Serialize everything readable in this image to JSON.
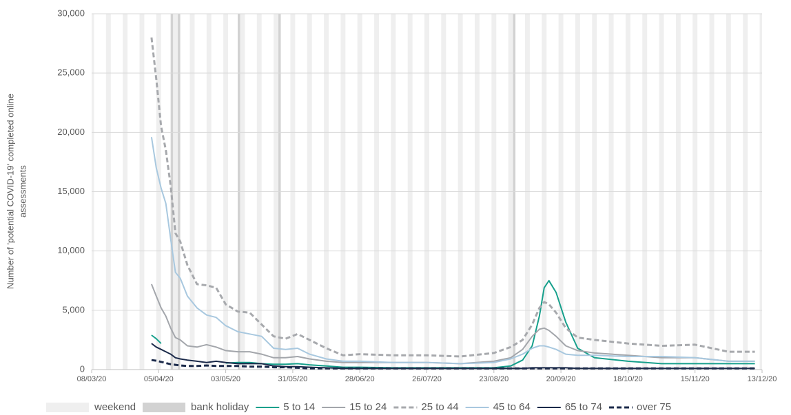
{
  "chart_data": {
    "type": "line",
    "y_label_lines": [
      "Number of 'potential COVID-19' completed online",
      "assessments"
    ],
    "xlim": [
      "08/03/20",
      "13/12/20"
    ],
    "xticks": [
      "08/03/20",
      "05/04/20",
      "03/05/20",
      "31/05/20",
      "28/06/20",
      "26/07/20",
      "23/08/20",
      "20/09/20",
      "18/10/20",
      "15/11/20",
      "13/12/20"
    ],
    "ylim": [
      0,
      30000
    ],
    "yticks": [
      0,
      {
        "value": 5000,
        "label": "5,000"
      },
      {
        "value": 10000,
        "label": "10,000"
      },
      {
        "value": 15000,
        "label": "15,000"
      },
      {
        "value": 20000,
        "label": "20,000"
      },
      {
        "value": 25000,
        "label": "25,000"
      },
      {
        "value": 30000,
        "label": "30,000"
      }
    ],
    "grid": true,
    "weekend_label": "weekend",
    "weekend_color": "#efefef",
    "bank_holiday_label": "bank holiday",
    "bank_holiday_color": "#d2d2d2",
    "bank_holidays": [
      "10/04/20",
      "13/04/20",
      "08/05/20",
      "25/05/20",
      "31/08/20"
    ],
    "legend": "bottom",
    "x": [
      "02/04/20",
      "04/04/20",
      "06/04/20",
      "08/04/20",
      "10/04/20",
      "12/04/20",
      "14/04/20",
      "17/04/20",
      "21/04/20",
      "25/04/20",
      "29/04/20",
      "03/05/20",
      "08/05/20",
      "13/05/20",
      "18/05/20",
      "23/05/20",
      "28/05/20",
      "02/06/20",
      "07/06/20",
      "14/06/20",
      "21/06/20",
      "28/06/20",
      "12/07/20",
      "26/07/20",
      "09/08/20",
      "23/08/20",
      "30/08/20",
      "04/09/20",
      "08/09/20",
      "11/09/20",
      "13/09/20",
      "15/09/20",
      "18/09/20",
      "22/09/20",
      "27/09/20",
      "04/10/20",
      "18/10/20",
      "01/11/20",
      "15/11/20",
      "29/11/20",
      "10/12/20"
    ],
    "series": [
      {
        "name": "5 to 14",
        "color": "#17a08c",
        "dashed": false,
        "values": [
          2900,
          2600,
          2200,
          null,
          null,
          null,
          null,
          null,
          null,
          null,
          null,
          550,
          600,
          600,
          500,
          450,
          450,
          500,
          400,
          300,
          200,
          200,
          150,
          150,
          150,
          150,
          300,
          800,
          2000,
          4500,
          6900,
          7500,
          6500,
          4000,
          1800,
          1000,
          700,
          500,
          500,
          500,
          500
        ]
      },
      {
        "name": "15 to 24",
        "color": "#a3a6ab",
        "dashed": false,
        "values": [
          7200,
          6200,
          5200,
          4500,
          3500,
          2700,
          2500,
          2000,
          1900,
          2100,
          1900,
          1600,
          1500,
          1500,
          1300,
          1000,
          1000,
          1100,
          900,
          700,
          600,
          600,
          600,
          600,
          500,
          700,
          1000,
          1700,
          2800,
          3400,
          3500,
          3300,
          2800,
          2000,
          1600,
          1400,
          1200,
          1000,
          1000,
          700,
          700
        ]
      },
      {
        "name": "25 to 44",
        "color": "#a7a9ad",
        "dashed": true,
        "values": [
          28000,
          24500,
          20500,
          18500,
          15500,
          11500,
          10800,
          8800,
          7200,
          7100,
          6900,
          5500,
          4900,
          4800,
          3800,
          2800,
          2600,
          3000,
          2500,
          1800,
          1200,
          1300,
          1200,
          1200,
          1100,
          1400,
          1900,
          2500,
          3800,
          5200,
          5700,
          5500,
          4800,
          3500,
          2700,
          2500,
          2200,
          2000,
          2100,
          1500,
          1500
        ]
      },
      {
        "name": "45 to 64",
        "color": "#a8c8df",
        "dashed": false,
        "values": [
          19600,
          17000,
          15300,
          14000,
          11000,
          8200,
          7700,
          6200,
          5200,
          4600,
          4400,
          3700,
          3200,
          3000,
          2800,
          1800,
          1700,
          1800,
          1300,
          900,
          700,
          700,
          600,
          600,
          500,
          600,
          900,
          1300,
          1800,
          2000,
          2000,
          1900,
          1700,
          1300,
          1200,
          1200,
          1100,
          1100,
          1000,
          700,
          700
        ]
      },
      {
        "name": "65 to 74",
        "color": "#1b2a4a",
        "dashed": false,
        "values": [
          2200,
          1900,
          1700,
          1500,
          1300,
          1000,
          900,
          800,
          700,
          600,
          700,
          600,
          500,
          500,
          500,
          300,
          250,
          250,
          200,
          150,
          100,
          100,
          100,
          100,
          100,
          100,
          100,
          100,
          150,
          150,
          150,
          150,
          150,
          150,
          100,
          100,
          100,
          100,
          100,
          100,
          100
        ]
      },
      {
        "name": "over 75",
        "color": "#1b2a4a",
        "dashed": true,
        "values": [
          800,
          750,
          650,
          550,
          450,
          400,
          350,
          300,
          300,
          350,
          300,
          300,
          300,
          250,
          250,
          200,
          200,
          150,
          100,
          100,
          100,
          100,
          100,
          100,
          100,
          100,
          100,
          100,
          100,
          100,
          100,
          100,
          100,
          100,
          100,
          100,
          100,
          100,
          100,
          100,
          100
        ]
      }
    ]
  }
}
